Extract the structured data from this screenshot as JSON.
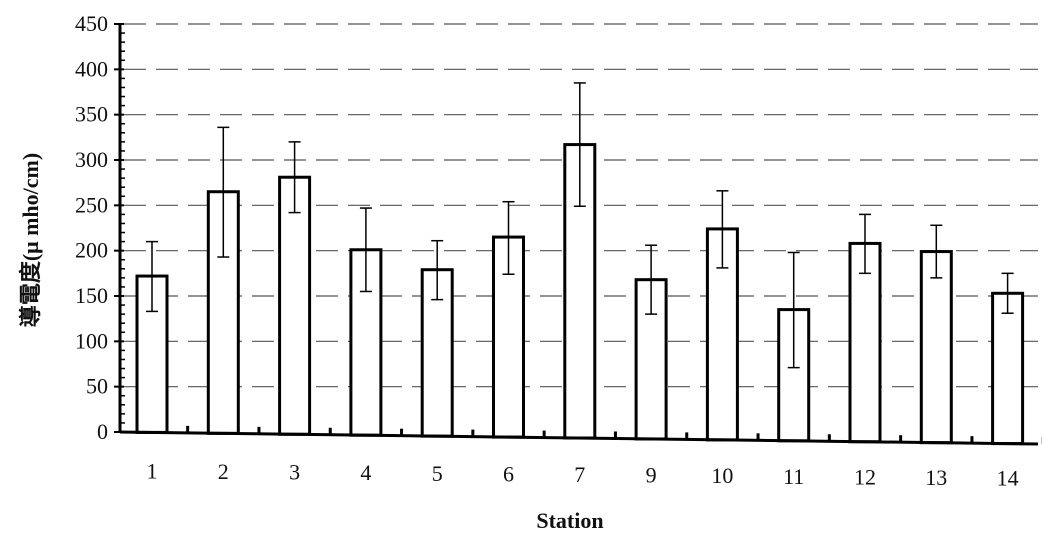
{
  "chart_data": {
    "type": "bar",
    "title": "",
    "xlabel": "Station",
    "ylabel": "導電度(μ mho/cm)",
    "categories": [
      "1",
      "2",
      "3",
      "4",
      "5",
      "6",
      "7",
      "9",
      "10",
      "11",
      "12",
      "13",
      "14"
    ],
    "values": [
      172,
      265,
      281,
      201,
      179,
      215,
      317,
      168,
      224,
      135,
      208,
      199,
      153
    ],
    "error_upper": [
      210,
      336,
      320,
      247,
      211,
      254,
      385,
      206,
      266,
      198,
      240,
      228,
      175
    ],
    "error_lower": [
      133,
      193,
      242,
      155,
      146,
      174,
      249,
      130,
      181,
      71,
      175,
      170,
      131
    ],
    "ylim": [
      0,
      450
    ],
    "yticks": [
      0,
      50,
      100,
      150,
      200,
      250,
      300,
      350,
      400,
      450
    ],
    "grid": true,
    "grid_style": "dashed-horizontal",
    "legend": "none",
    "colors": {
      "bar_fill": "#ffffff",
      "bar_stroke": "#000000",
      "axis": "#000000",
      "grid": "#555555"
    }
  }
}
